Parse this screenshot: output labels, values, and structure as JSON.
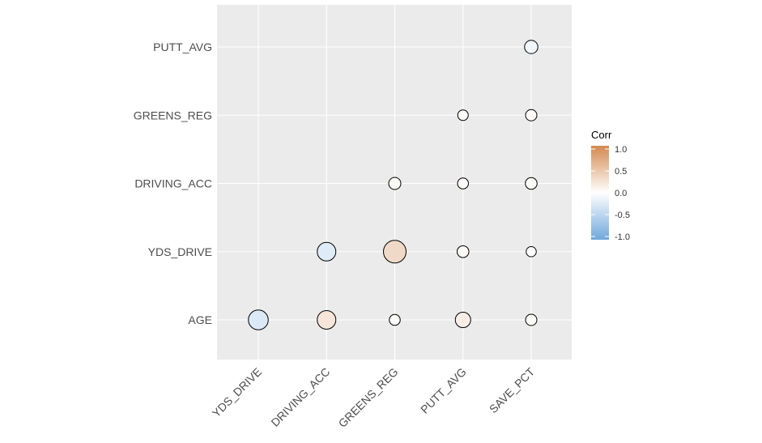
{
  "chart_data": {
    "type": "scatter",
    "subtype": "correlation-circle-plot",
    "x_categories": [
      "YDS_DRIVE",
      "DRIVING_ACC",
      "GREENS_REG",
      "PUTT_AVG",
      "SAVE_PCT"
    ],
    "y_categories": [
      "AGE",
      "YDS_DRIVE",
      "DRIVING_ACC",
      "GREENS_REG",
      "PUTT_AVG"
    ],
    "cells": [
      {
        "x": "YDS_DRIVE",
        "y": "AGE",
        "corr": -0.25
      },
      {
        "x": "DRIVING_ACC",
        "y": "AGE",
        "corr": 0.22
      },
      {
        "x": "GREENS_REG",
        "y": "AGE",
        "corr": 0.03
      },
      {
        "x": "PUTT_AVG",
        "y": "AGE",
        "corr": 0.14
      },
      {
        "x": "SAVE_PCT",
        "y": "AGE",
        "corr": 0.04
      },
      {
        "x": "DRIVING_ACC",
        "y": "YDS_DRIVE",
        "corr": -0.22
      },
      {
        "x": "GREENS_REG",
        "y": "YDS_DRIVE",
        "corr": 0.32
      },
      {
        "x": "PUTT_AVG",
        "y": "YDS_DRIVE",
        "corr": 0.05
      },
      {
        "x": "SAVE_PCT",
        "y": "YDS_DRIVE",
        "corr": -0.01
      },
      {
        "x": "GREENS_REG",
        "y": "DRIVING_ACC",
        "corr": 0.06
      },
      {
        "x": "PUTT_AVG",
        "y": "DRIVING_ACC",
        "corr": 0.03
      },
      {
        "x": "SAVE_PCT",
        "y": "DRIVING_ACC",
        "corr": 0.05
      },
      {
        "x": "PUTT_AVG",
        "y": "GREENS_REG",
        "corr": 0.02
      },
      {
        "x": "SAVE_PCT",
        "y": "GREENS_REG",
        "corr": 0.04
      },
      {
        "x": "SAVE_PCT",
        "y": "PUTT_AVG",
        "corr": -0.09
      }
    ],
    "size_encodes": "absolute correlation",
    "fill_encodes": "correlation",
    "legend": {
      "title": "Corr",
      "placement": "right",
      "range": [
        -1,
        1
      ],
      "ticks": [
        "1.0",
        "0.5",
        "0.0",
        "-0.5",
        "-1.0"
      ]
    },
    "colors": {
      "low": "#6fa8dc",
      "mid": "#ffffff",
      "high": "#d4894f",
      "panel_background": "#ebebeb",
      "gridline": "#ffffff",
      "circle_outline": "#000000"
    },
    "grid": true
  }
}
